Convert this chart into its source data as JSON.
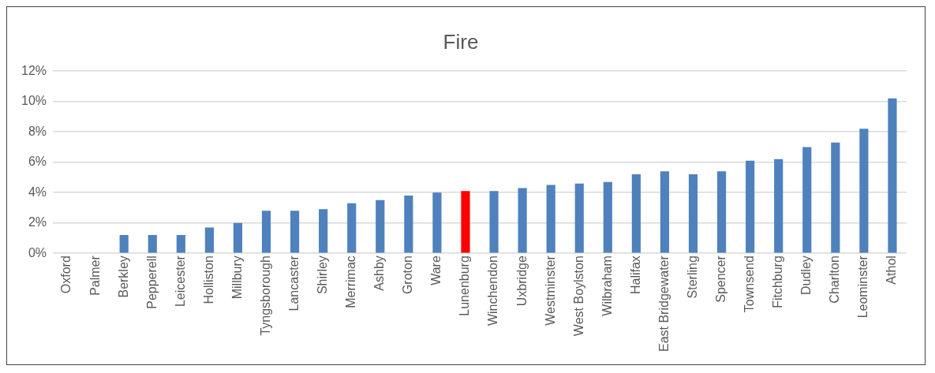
{
  "chart_data": {
    "type": "bar",
    "title": "Fire",
    "categories": [
      "Oxford",
      "Palmer",
      "Berkley",
      "Pepperell",
      "Leicester",
      "Holliston",
      "Millbury",
      "Tyngsborough",
      "Lancaster",
      "Shirley",
      "Merrimac",
      "Ashby",
      "Groton",
      "Ware",
      "Lunenburg",
      "Winchendon",
      "Uxbridge",
      "Westminster",
      "West Boylston",
      "Wilbraham",
      "Halifax",
      "East Bridgewater",
      "Sterling",
      "Spencer",
      "Townsend",
      "Fitchburg",
      "Dudley",
      "Charlton",
      "Leominster",
      "Athol"
    ],
    "values": [
      0,
      0,
      1.2,
      1.2,
      1.2,
      1.7,
      2.0,
      2.8,
      2.8,
      2.9,
      3.3,
      3.5,
      3.8,
      4.0,
      4.1,
      4.1,
      4.3,
      4.5,
      4.6,
      4.7,
      5.2,
      5.4,
      5.2,
      5.4,
      6.1,
      6.2,
      7.0,
      7.3,
      8.2,
      10.2
    ],
    "colors": [
      "#4f81bd",
      "#4f81bd",
      "#4f81bd",
      "#4f81bd",
      "#4f81bd",
      "#4f81bd",
      "#4f81bd",
      "#4f81bd",
      "#4f81bd",
      "#4f81bd",
      "#4f81bd",
      "#4f81bd",
      "#4f81bd",
      "#4f81bd",
      "#ff0000",
      "#4f81bd",
      "#4f81bd",
      "#4f81bd",
      "#4f81bd",
      "#4f81bd",
      "#4f81bd",
      "#4f81bd",
      "#4f81bd",
      "#4f81bd",
      "#4f81bd",
      "#4f81bd",
      "#4f81bd",
      "#4f81bd",
      "#4f81bd",
      "#4f81bd"
    ],
    "ylim": [
      0,
      12
    ],
    "yticks": [
      {
        "value": 0,
        "label": "0%"
      },
      {
        "value": 2,
        "label": "2%"
      },
      {
        "value": 4,
        "label": "4%"
      },
      {
        "value": 6,
        "label": "6%"
      },
      {
        "value": 8,
        "label": "8%"
      },
      {
        "value": 10,
        "label": "10%"
      },
      {
        "value": 12,
        "label": "12%"
      }
    ],
    "grid": "y",
    "legend": false
  }
}
